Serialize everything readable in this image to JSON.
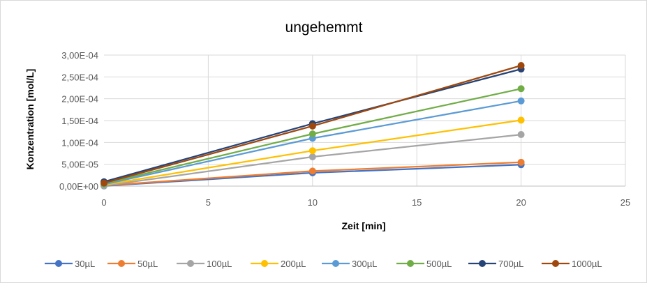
{
  "chart_data": {
    "type": "line",
    "title": "ungehemmt",
    "xlabel": "Zeit [min]",
    "ylabel": "Konzentration  [mol/L]",
    "xlim": [
      0,
      25
    ],
    "ylim": [
      0,
      0.0003
    ],
    "x_ticks": [
      "0",
      "5",
      "10",
      "15",
      "20",
      "25"
    ],
    "y_ticks": [
      "0,00E+00",
      "5,00E-05",
      "1,00E-04",
      "1,50E-04",
      "2,00E-04",
      "2,50E-04",
      "3,00E-04"
    ],
    "grid": true,
    "legend_position": "bottom",
    "series": [
      {
        "name": "30µL",
        "color": "#4472C4",
        "x": [
          0,
          10,
          20
        ],
        "y": [
          5e-07,
          3.05e-05,
          4.9e-05
        ]
      },
      {
        "name": "50µL",
        "color": "#ED7D31",
        "x": [
          0,
          10,
          20
        ],
        "y": [
          1.5e-06,
          3.45e-05,
          5.45e-05
        ]
      },
      {
        "name": "100µL",
        "color": "#A5A5A5",
        "x": [
          0,
          10,
          20
        ],
        "y": [
          1e-06,
          6.7e-05,
          0.000118
        ]
      },
      {
        "name": "200µL",
        "color": "#FFC000",
        "x": [
          0,
          10,
          20
        ],
        "y": [
          3e-06,
          8.1e-05,
          0.000151
        ]
      },
      {
        "name": "300µL",
        "color": "#5B9BD5",
        "x": [
          0,
          10,
          20
        ],
        "y": [
          4e-06,
          0.0001095,
          0.000195
        ]
      },
      {
        "name": "500µL",
        "color": "#70AD47",
        "x": [
          0,
          10,
          20
        ],
        "y": [
          6e-06,
          0.0001195,
          0.000223
        ]
      },
      {
        "name": "700µL",
        "color": "#264478",
        "x": [
          0,
          10,
          20
        ],
        "y": [
          1e-05,
          0.000143,
          0.000268
        ]
      },
      {
        "name": "1000µL",
        "color": "#9E480E",
        "x": [
          0,
          10,
          20
        ],
        "y": [
          7e-06,
          0.0001375,
          0.000276
        ]
      }
    ]
  }
}
